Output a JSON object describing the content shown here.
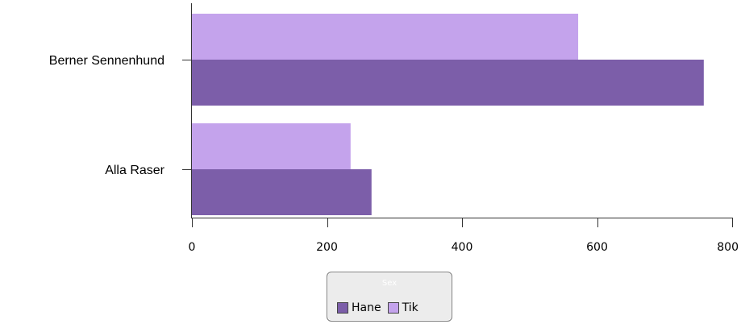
{
  "chart_data": {
    "type": "bar",
    "orientation": "horizontal",
    "categories": [
      "Berner Sennenhund",
      "Alla Raser"
    ],
    "series": [
      {
        "name": "Tik",
        "color": "#c4a3ec",
        "values": [
          572,
          235
        ]
      },
      {
        "name": "Hane",
        "color": "#7c5ea9",
        "values": [
          758,
          266
        ]
      }
    ],
    "x_ticks": [
      0,
      200,
      400,
      600,
      800
    ],
    "xlim": [
      0,
      800
    ],
    "xlabel": "",
    "ylabel": "",
    "grid": false,
    "legend": {
      "title": "Sex",
      "placement": "bottom-center",
      "entries": [
        {
          "name": "Hane",
          "color": "#7c5ea9"
        },
        {
          "name": "Tik",
          "color": "#c4a3ec"
        }
      ]
    }
  }
}
